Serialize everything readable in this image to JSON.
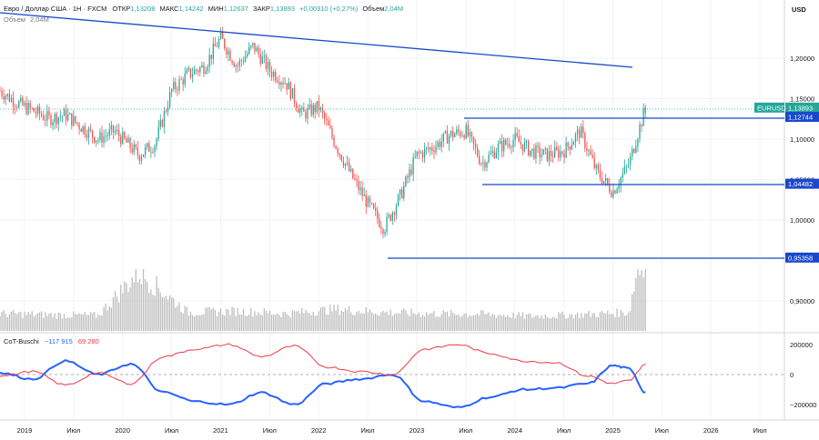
{
  "header": {
    "symbol": "Евро / Доллар США · 1Н · FXCM",
    "open_label": "ОТКР",
    "open_value": "1,13208",
    "high_label": "МАКС",
    "high_value": "1,14242",
    "low_label": "МИН",
    "low_value": "1,12637",
    "close_label": "ЗАКР",
    "close_value": "1,13893",
    "change": "+0,00310 (+0,27%)",
    "volume_label": "Объем",
    "volume_value": "2,04M",
    "volume_row_label": "Объем",
    "volume_row_value": "2,04M"
  },
  "price_scale": {
    "currency": "USD",
    "ticks": [
      "1,20000",
      "1,15000",
      "1,10000",
      "1,05000",
      "1,00000",
      "0,90000"
    ]
  },
  "price_badges": [
    {
      "label": "EURUSD",
      "value": "1,13893",
      "color": "#26a69a"
    },
    {
      "value": "1,12744",
      "color": "#1848cc"
    },
    {
      "value": "1,04482",
      "color": "#1848cc"
    },
    {
      "value": "0,95358",
      "color": "#1848cc"
    }
  ],
  "cot": {
    "name": "CoT-Buschi",
    "value1": "−117 915",
    "value2": "69 280",
    "color1": "#2962ff",
    "color2": "#f23645",
    "ticks": [
      "200000",
      "0",
      "−200000"
    ]
  },
  "time_axis": {
    "ticks": [
      "2019",
      "Июл",
      "2020",
      "Июл",
      "2021",
      "Июл",
      "2022",
      "Июл",
      "2023",
      "Июл",
      "2024",
      "Июл",
      "2025",
      "Июл",
      "2026",
      "Июл"
    ]
  },
  "colors": {
    "up": "#26a69a",
    "down": "#ef5350",
    "volume": "#bdbdbd",
    "levels": "#1848cc",
    "cot_net": "#2962ff",
    "cot_opposite": "#f23645"
  },
  "chart_data": [
    {
      "type": "candlestick",
      "title": "Евро / Доллар США · 1Н · FXCM",
      "timeframe": "1Н",
      "y_unit": "USD",
      "ylim": [
        0.86,
        1.255
      ],
      "x_range": [
        "2018-10",
        "2026-10"
      ],
      "last": {
        "open": 1.13208,
        "high": 1.14242,
        "low": 1.12637,
        "close": 1.13893,
        "change": 0.0031,
        "change_pct": 0.27
      },
      "horizontal_levels": [
        1.12744,
        1.04482,
        0.95358
      ],
      "trendline": {
        "from": {
          "date": "2018-10",
          "price": 1.247
        },
        "to": {
          "date": "2025-07",
          "price": 1.19
        }
      },
      "series": [
        {
          "name": "EURUSD",
          "x": [
            "2018-10",
            "2018-12",
            "2019-02",
            "2019-04",
            "2019-06",
            "2019-08",
            "2019-10",
            "2019-12",
            "2020-02",
            "2020-03",
            "2020-05",
            "2020-07",
            "2020-09",
            "2020-11",
            "2021-01",
            "2021-03",
            "2021-05",
            "2021-07",
            "2021-09",
            "2021-11",
            "2022-01",
            "2022-03",
            "2022-05",
            "2022-07",
            "2022-09",
            "2022-11",
            "2023-01",
            "2023-03",
            "2023-05",
            "2023-07",
            "2023-09",
            "2023-11",
            "2024-01",
            "2024-03",
            "2024-05",
            "2024-07",
            "2024-09",
            "2024-11",
            "2025-01",
            "2025-03",
            "2025-04",
            "2025-05"
          ],
          "close": [
            1.16,
            1.145,
            1.135,
            1.125,
            1.13,
            1.115,
            1.1,
            1.11,
            1.09,
            1.08,
            1.095,
            1.16,
            1.18,
            1.19,
            1.225,
            1.19,
            1.215,
            1.185,
            1.17,
            1.13,
            1.14,
            1.095,
            1.055,
            1.02,
            0.99,
            1.03,
            1.08,
            1.09,
            1.105,
            1.11,
            1.07,
            1.09,
            1.1,
            1.085,
            1.08,
            1.085,
            1.11,
            1.06,
            1.035,
            1.07,
            1.105,
            1.13893
          ]
        }
      ]
    },
    {
      "type": "bar",
      "title": "Объем",
      "last_value": "2,04M",
      "note": "weekly volume histogram, relative heights only (no axis shown)",
      "x": [
        "2018-10",
        "2019-04",
        "2019-10",
        "2020-03",
        "2020-09",
        "2021-03",
        "2021-09",
        "2022-03",
        "2022-09",
        "2023-03",
        "2023-09",
        "2024-03",
        "2024-09",
        "2025-03",
        "2025-04"
      ],
      "values": [
        0.28,
        0.26,
        0.25,
        0.95,
        0.3,
        0.32,
        0.28,
        0.35,
        0.3,
        0.28,
        0.27,
        0.24,
        0.26,
        0.3,
        1.0
      ]
    },
    {
      "type": "line",
      "title": "CoT-Buschi",
      "ylim": [
        -280000,
        280000
      ],
      "x": [
        "2018-10",
        "2019-02",
        "2019-06",
        "2019-10",
        "2020-02",
        "2020-06",
        "2020-10",
        "2021-02",
        "2021-06",
        "2021-10",
        "2022-02",
        "2022-06",
        "2022-10",
        "2023-02",
        "2023-06",
        "2023-10",
        "2024-02",
        "2024-06",
        "2024-10",
        "2025-01",
        "2025-03",
        "2025-05"
      ],
      "series": [
        {
          "name": "net",
          "values": [
            10000,
            -30000,
            90000,
            0,
            70000,
            -120000,
            -180000,
            -200000,
            -120000,
            -200000,
            -60000,
            -30000,
            0,
            -180000,
            -220000,
            -150000,
            -100000,
            -90000,
            -60000,
            60000,
            40000,
            -117915
          ]
        },
        {
          "name": "opposite",
          "values": [
            -10000,
            20000,
            -70000,
            10000,
            -60000,
            120000,
            170000,
            200000,
            120000,
            190000,
            50000,
            20000,
            0,
            170000,
            200000,
            140000,
            90000,
            80000,
            -10000,
            -60000,
            -40000,
            69280
          ]
        }
      ]
    }
  ]
}
